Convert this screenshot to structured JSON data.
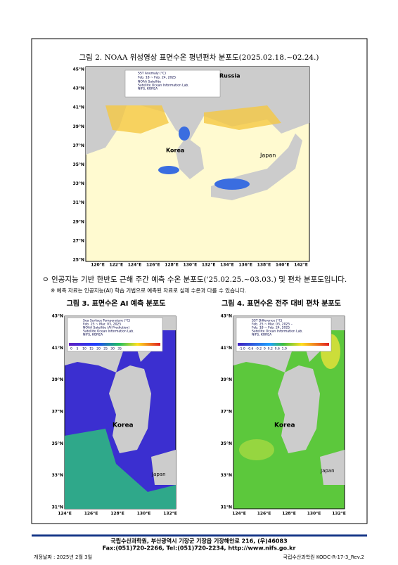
{
  "figure2": {
    "title": "그림 2. NOAA 위성영상 표면수온 평년편차 분포도(2025.02.18.~02.24.)",
    "lat_labels": [
      "45°N",
      "43°N",
      "41°N",
      "39°N",
      "37°N",
      "35°N",
      "33°N",
      "31°N",
      "29°N",
      "27°N",
      "25°N"
    ],
    "lon_labels": [
      "120°E",
      "122°E",
      "124°E",
      "126°E",
      "128°E",
      "130°E",
      "132°E",
      "134°E",
      "136°E",
      "138°E",
      "140°E",
      "142°E"
    ],
    "legend": [
      "SST Anomaly (°C)",
      "Feb. 18 ~ Feb. 24, 2025",
      "NOAA Satellite",
      "Satellite Ocean Information Lab.",
      "NIFS, KOREA"
    ],
    "places": [
      "Russia",
      "Korea",
      "Japan"
    ]
  },
  "bullet": "ㅇ 인공지능 기반 한반도 근해 주간 예측 수온 분포도('25.02.25.~03.03.) 및 편차 분포도입니다.",
  "note": "※ 예측 자료는 인공지능(AI) 학습 기법으로 예측된 자료로 실제 수온과 다를 수 있습니다.",
  "figure3": {
    "title": "그림 3. 표면수온 AI 예측 분포도",
    "lat_labels": [
      "43°N",
      "41°N",
      "39°N",
      "37°N",
      "35°N",
      "33°N",
      "31°N"
    ],
    "lon_labels": [
      "124°E",
      "126°E",
      "128°E",
      "130°E",
      "132°E"
    ],
    "legend": [
      "Sea Surface Temperature (°C)",
      "Feb. 25 ~ Mar. 03, 2025",
      "NOAA Satellite (AI Prediction)",
      "Satellite Ocean Information Lab.",
      "NIFS, KOREA"
    ],
    "scale": "0    5    10   15   20   25   30   35",
    "places": [
      "Korea",
      "Japan"
    ]
  },
  "figure4": {
    "title": "그림 4. 표면수온 전주 대비 편차 분포도",
    "lat_labels": [
      "43°N",
      "41°N",
      "39°N",
      "37°N",
      "35°N",
      "33°N",
      "31°N"
    ],
    "lon_labels": [
      "124°E",
      "126°E",
      "128°E",
      "130°E",
      "132°E"
    ],
    "legend": [
      "SST Difference (°C)",
      "Feb. 25 ~ Mar. 03, 2025 –",
      "Feb. 18 ~ Feb. 24, 2025",
      "Satellite Ocean Information Lab.",
      "NIFS, KOREA"
    ],
    "scale": "-1.0  -0.6  -0.2  0  0.2  0.6  1.0",
    "places": [
      "Korea",
      "Japan"
    ]
  },
  "footer": {
    "address": "국립수산과학원, 부산광역시 기장군 기장읍 기장해안로 216, (우)46083",
    "contact": "Fax:(051)720-2266, Tel:(051)720-2234, http://www.nifs.go.kr",
    "date": "개정날짜 : 2025년 2월 3일",
    "code": "국립수산과학원 KODC-R-17-3_Rev.2"
  }
}
